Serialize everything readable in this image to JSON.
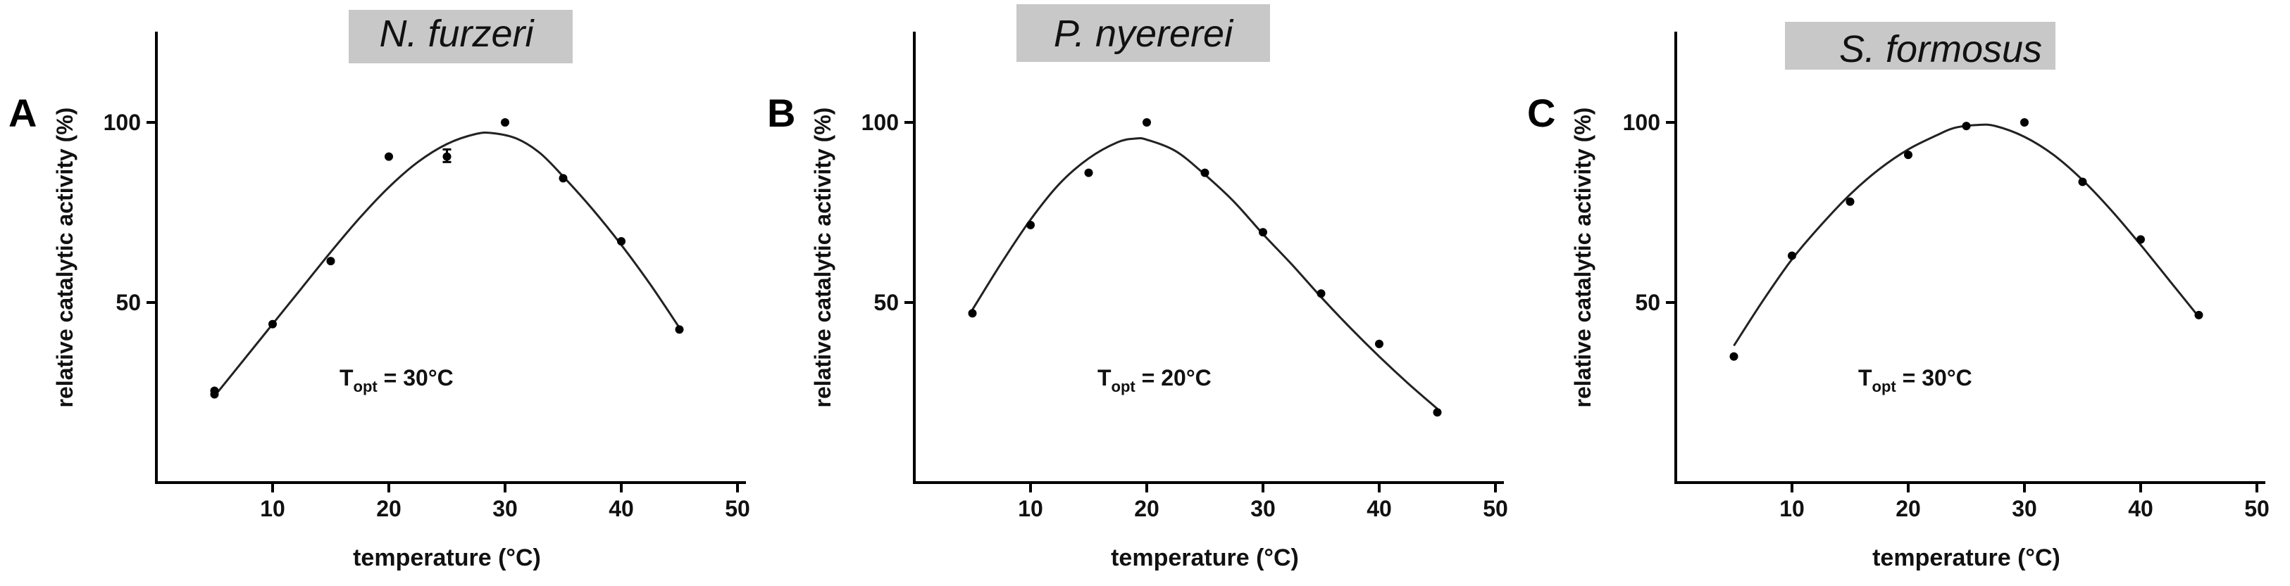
{
  "panels": [
    {
      "letter": "A",
      "title": "N. furzeri",
      "annotation": {
        "prefix": "T",
        "sub": "opt",
        "suffix": " = 30°C"
      },
      "chart_data": {
        "type": "scatter",
        "xlabel": "temperature (°C)",
        "ylabel": "relative catalytic activity (%)",
        "xlim": [
          0,
          50
        ],
        "ylim": [
          0,
          110
        ],
        "xticks": [
          10,
          20,
          30,
          40,
          50
        ],
        "yticks": [
          50,
          100
        ],
        "points": [
          {
            "x": 5,
            "y": 24.5
          },
          {
            "x": 5,
            "y": 25.5
          },
          {
            "x": 10,
            "y": 44
          },
          {
            "x": 15,
            "y": 61.5
          },
          {
            "x": 20,
            "y": 90.5
          },
          {
            "x": 25,
            "y": 90.5
          },
          {
            "x": 30,
            "y": 100
          },
          {
            "x": 35,
            "y": 84.5
          },
          {
            "x": 40,
            "y": 67
          },
          {
            "x": 45,
            "y": 42.5
          }
        ],
        "error_bars": [
          {
            "x": 25,
            "y_low": 89,
            "y_high": 92.5
          }
        ],
        "fit": {
          "x": [
            5,
            7.5,
            10,
            12.5,
            15,
            17.5,
            20,
            22.5,
            25,
            27.5,
            29,
            31,
            33,
            35,
            37.5,
            40,
            42.5,
            45
          ],
          "y": [
            24,
            34,
            44,
            54,
            64,
            73.5,
            82,
            89,
            94,
            96.8,
            97,
            95.5,
            91.5,
            85,
            76,
            66,
            55,
            43
          ]
        },
        "grid": false,
        "legend": "none"
      }
    },
    {
      "letter": "B",
      "title": "P. nyererei",
      "annotation": {
        "prefix": "T",
        "sub": "opt",
        "suffix": " = 20°C"
      },
      "chart_data": {
        "type": "scatter",
        "xlabel": "temperature (°C)",
        "ylabel": "relative catalytic activity (%)",
        "xlim": [
          0,
          50
        ],
        "ylim": [
          0,
          110
        ],
        "xticks": [
          10,
          20,
          30,
          40,
          50
        ],
        "yticks": [
          50,
          100
        ],
        "points": [
          {
            "x": 5,
            "y": 47
          },
          {
            "x": 10,
            "y": 71.5
          },
          {
            "x": 15,
            "y": 86
          },
          {
            "x": 20,
            "y": 100
          },
          {
            "x": 25,
            "y": 86
          },
          {
            "x": 30,
            "y": 69.5
          },
          {
            "x": 35,
            "y": 52.5
          },
          {
            "x": 40,
            "y": 38.5
          },
          {
            "x": 45,
            "y": 19.5
          }
        ],
        "error_bars": [],
        "fit": {
          "x": [
            5,
            7.5,
            10,
            12.5,
            15,
            17.5,
            19,
            20,
            22.5,
            25,
            27.5,
            30,
            32.5,
            35,
            37.5,
            40,
            42.5,
            45
          ],
          "y": [
            48,
            61,
            73,
            83,
            90,
            94.5,
            95.5,
            95.2,
            92,
            85.5,
            78,
            69,
            60.5,
            51.5,
            43,
            35,
            27.5,
            20.5
          ]
        },
        "grid": false,
        "legend": "none"
      }
    },
    {
      "letter": "C",
      "title": "S. formosus",
      "annotation": {
        "prefix": "T",
        "sub": "opt",
        "suffix": " = 30°C"
      },
      "chart_data": {
        "type": "scatter",
        "xlabel": "temperature (°C)",
        "ylabel": "relative catalytic activity (%)",
        "xlim": [
          0,
          50
        ],
        "ylim": [
          0,
          110
        ],
        "xticks": [
          10,
          20,
          30,
          40,
          50
        ],
        "yticks": [
          50,
          100
        ],
        "points": [
          {
            "x": 5,
            "y": 35
          },
          {
            "x": 10,
            "y": 63
          },
          {
            "x": 15,
            "y": 78
          },
          {
            "x": 20,
            "y": 91
          },
          {
            "x": 25,
            "y": 99
          },
          {
            "x": 30,
            "y": 100
          },
          {
            "x": 35,
            "y": 83.5
          },
          {
            "x": 40,
            "y": 67.5
          },
          {
            "x": 45,
            "y": 46.5
          }
        ],
        "error_bars": [],
        "fit": {
          "x": [
            5,
            7.5,
            10,
            12.5,
            15,
            17.5,
            20,
            22.5,
            24,
            26,
            27.5,
            30,
            32.5,
            35,
            37.5,
            40,
            42.5,
            45
          ],
          "y": [
            38,
            50.5,
            62,
            71.5,
            80,
            87,
            92.5,
            96.5,
            98.5,
            99.3,
            99,
            96,
            91,
            84,
            75.5,
            66,
            56,
            46
          ]
        },
        "grid": false,
        "legend": "none"
      }
    }
  ]
}
